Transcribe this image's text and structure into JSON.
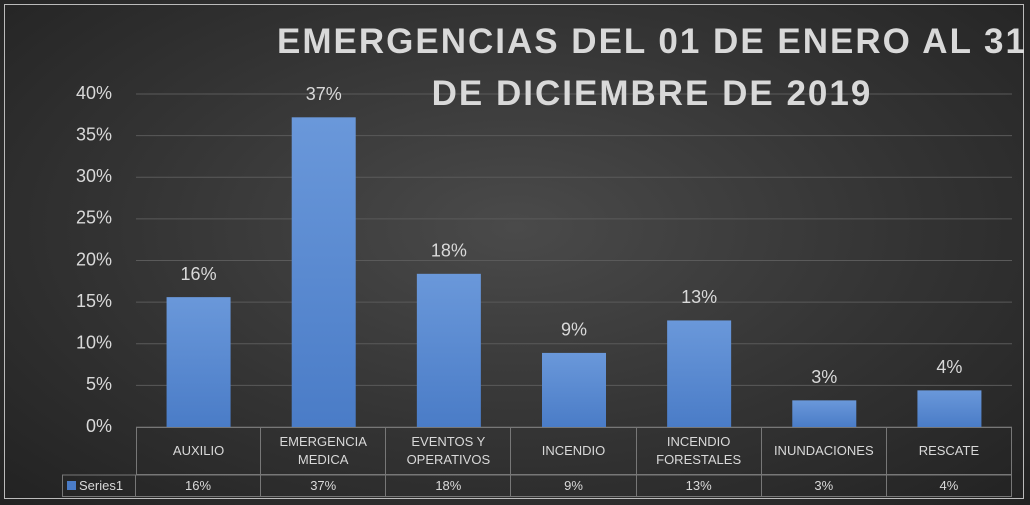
{
  "chart_data": {
    "type": "bar",
    "title": "EMERGENCIAS DEL 01 DE ENERO AL 31 DE DICIEMBRE DE 2019",
    "categories": [
      "AUXILIO",
      "EMERGENCIA MEDICA",
      "EVENTOS Y OPERATIVOS",
      "INCENDIO",
      "INCENDIO FORESTALES",
      "INUNDACIONES",
      "RESCATE"
    ],
    "series": [
      {
        "name": "Series1",
        "color": "#4a7cc7",
        "values": [
          15.6,
          37.2,
          18.4,
          8.9,
          12.8,
          3.2,
          4.4
        ],
        "value_labels": [
          "16%",
          "37%",
          "18%",
          "9%",
          "13%",
          "3%",
          "4%"
        ]
      }
    ],
    "ylim": [
      0,
      40
    ],
    "yticks": [
      {
        "value": 0,
        "label": "0%"
      },
      {
        "value": 5,
        "label": "5%"
      },
      {
        "value": 10,
        "label": "10%"
      },
      {
        "value": 15,
        "label": "15%"
      },
      {
        "value": 20,
        "label": "20%"
      },
      {
        "value": 25,
        "label": "25%"
      },
      {
        "value": 30,
        "label": "30%"
      },
      {
        "value": 35,
        "label": "35%"
      },
      {
        "value": 40,
        "label": "40%"
      }
    ],
    "grid": true,
    "data_table": true
  }
}
